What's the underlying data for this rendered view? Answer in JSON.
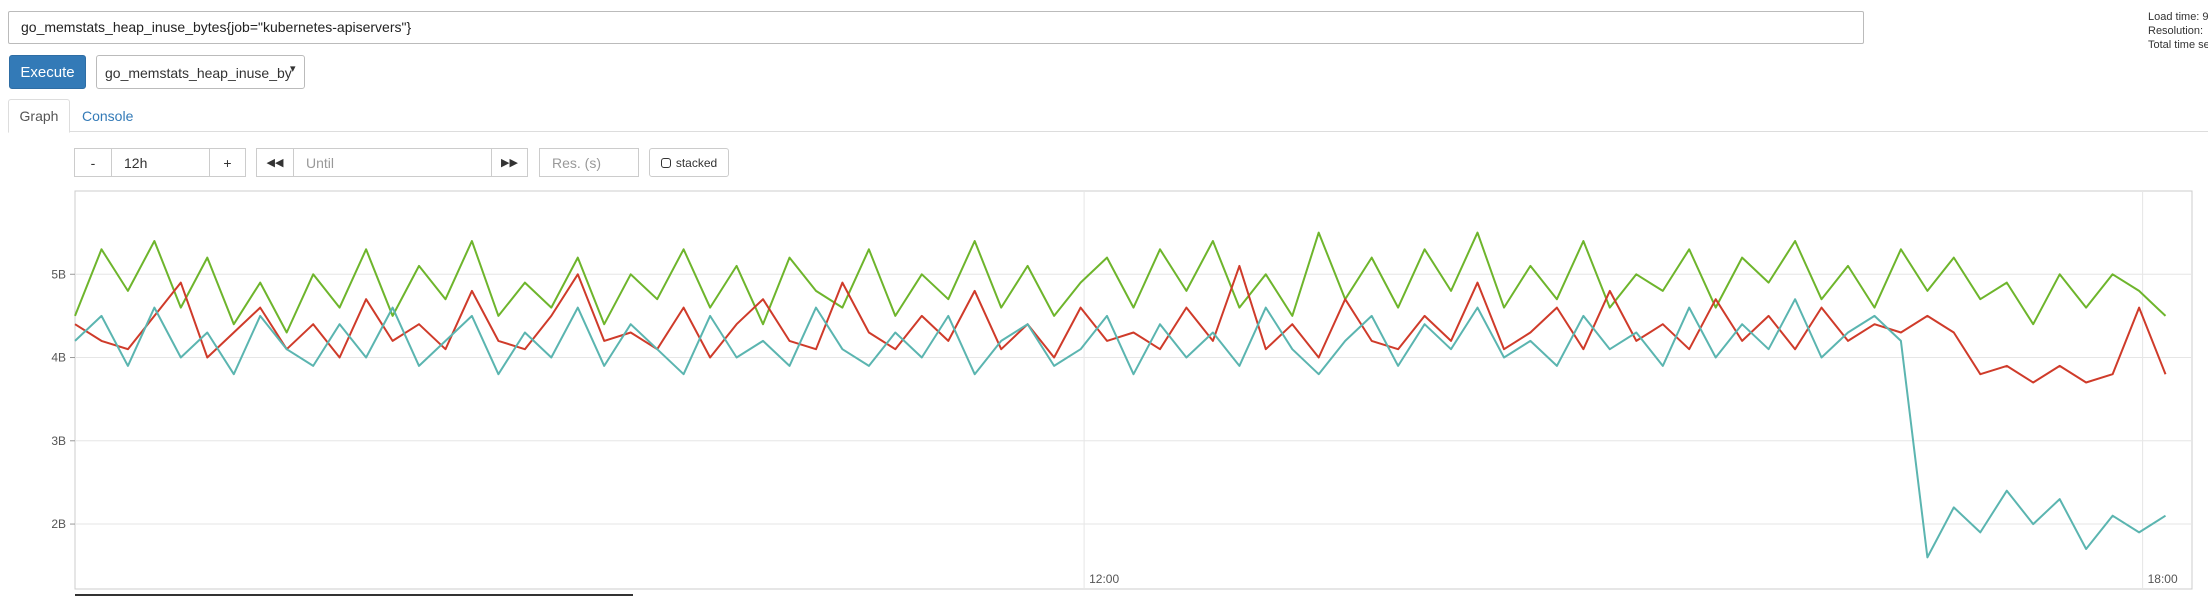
{
  "query_input": "go_memstats_heap_inuse_bytes{job=\"kubernetes-apiservers\"}",
  "execute_button": "Execute",
  "metric_select": "go_memstats_heap_inuse_by",
  "tabs": [
    "Graph",
    "Console"
  ],
  "controls": {
    "minus": "-",
    "range": "12h",
    "plus": "+",
    "until": "Until",
    "resolution": "Res. (s)",
    "stacked": "stacked"
  },
  "stats": [
    "Load time: 9",
    "Resolution:",
    "Total time se"
  ],
  "chart_data": {
    "type": "line",
    "x": [
      6.28,
      6.43,
      6.58,
      6.73,
      6.88,
      7.03,
      7.18,
      7.33,
      7.48,
      7.63,
      7.78,
      7.93,
      8.08,
      8.23,
      8.38,
      8.53,
      8.68,
      8.83,
      8.98,
      9.13,
      9.28,
      9.43,
      9.58,
      9.73,
      9.88,
      10.03,
      10.18,
      10.33,
      10.48,
      10.63,
      10.78,
      10.93,
      11.08,
      11.23,
      11.38,
      11.53,
      11.68,
      11.83,
      11.98,
      12.13,
      12.28,
      12.43,
      12.58,
      12.73,
      12.88,
      13.03,
      13.18,
      13.33,
      13.48,
      13.63,
      13.78,
      13.93,
      14.08,
      14.23,
      14.38,
      14.53,
      14.68,
      14.83,
      14.98,
      15.13,
      15.28,
      15.43,
      15.58,
      15.73,
      15.88,
      16.03,
      16.18,
      16.33,
      16.48,
      16.63,
      16.78,
      16.93,
      17.08,
      17.23,
      17.38,
      17.53,
      17.68,
      17.83,
      17.98,
      18.13
    ],
    "series": [
      {
        "color": "#6eb52c",
        "values": [
          4.5,
          5.3,
          4.8,
          5.4,
          4.6,
          5.2,
          4.4,
          4.9,
          4.3,
          5.0,
          4.6,
          5.3,
          4.5,
          5.1,
          4.7,
          5.4,
          4.5,
          4.9,
          4.6,
          5.2,
          4.4,
          5.0,
          4.7,
          5.3,
          4.6,
          5.1,
          4.4,
          5.2,
          4.8,
          4.6,
          5.3,
          4.5,
          5.0,
          4.7,
          5.4,
          4.6,
          5.1,
          4.5,
          4.9,
          5.2,
          4.6,
          5.3,
          4.8,
          5.4,
          4.6,
          5.0,
          4.5,
          5.5,
          4.7,
          5.2,
          4.6,
          5.3,
          4.8,
          5.5,
          4.6,
          5.1,
          4.7,
          5.4,
          4.6,
          5.0,
          4.8,
          5.3,
          4.6,
          5.2,
          4.9,
          5.4,
          4.7,
          5.1,
          4.6,
          5.3,
          4.8,
          5.2,
          4.7,
          4.9,
          4.4,
          5.0,
          4.6,
          5.0,
          4.8,
          4.5
        ]
      },
      {
        "color": "#cf3b2a",
        "values": [
          4.4,
          4.2,
          4.1,
          4.5,
          4.9,
          4.0,
          4.3,
          4.6,
          4.1,
          4.4,
          4.0,
          4.7,
          4.2,
          4.4,
          4.1,
          4.8,
          4.2,
          4.1,
          4.5,
          5.0,
          4.2,
          4.3,
          4.1,
          4.6,
          4.0,
          4.4,
          4.7,
          4.2,
          4.1,
          4.9,
          4.3,
          4.1,
          4.5,
          4.2,
          4.8,
          4.1,
          4.4,
          4.0,
          4.6,
          4.2,
          4.3,
          4.1,
          4.6,
          4.2,
          5.1,
          4.1,
          4.4,
          4.0,
          4.7,
          4.2,
          4.1,
          4.5,
          4.2,
          4.9,
          4.1,
          4.3,
          4.6,
          4.1,
          4.8,
          4.2,
          4.4,
          4.1,
          4.7,
          4.2,
          4.5,
          4.1,
          4.6,
          4.2,
          4.4,
          4.3,
          4.5,
          4.3,
          3.8,
          3.9,
          3.7,
          3.9,
          3.7,
          3.8,
          4.6,
          3.8
        ]
      },
      {
        "color": "#5bb5b0",
        "values": [
          4.2,
          4.5,
          3.9,
          4.6,
          4.0,
          4.3,
          3.8,
          4.5,
          4.1,
          3.9,
          4.4,
          4.0,
          4.6,
          3.9,
          4.2,
          4.5,
          3.8,
          4.3,
          4.0,
          4.6,
          3.9,
          4.4,
          4.1,
          3.8,
          4.5,
          4.0,
          4.2,
          3.9,
          4.6,
          4.1,
          3.9,
          4.3,
          4.0,
          4.5,
          3.8,
          4.2,
          4.4,
          3.9,
          4.1,
          4.5,
          3.8,
          4.4,
          4.0,
          4.3,
          3.9,
          4.6,
          4.1,
          3.8,
          4.2,
          4.5,
          3.9,
          4.4,
          4.1,
          4.6,
          4.0,
          4.2,
          3.9,
          4.5,
          4.1,
          4.3,
          3.9,
          4.6,
          4.0,
          4.4,
          4.1,
          4.7,
          4.0,
          4.3,
          4.5,
          4.2,
          1.6,
          2.2,
          1.9,
          2.4,
          2.0,
          2.3,
          1.7,
          2.1,
          1.9,
          2.1
        ]
      }
    ],
    "xlim": [
      6.28,
      18.28
    ],
    "xticks": [
      {
        "value": 12,
        "label": "12:00"
      },
      {
        "value": 18,
        "label": "18:00"
      }
    ],
    "ylim": [
      1.22,
      6.0
    ],
    "yticks": [
      {
        "value": 2,
        "label": "2B"
      },
      {
        "value": 3,
        "label": "3B"
      },
      {
        "value": 4,
        "label": "4B"
      },
      {
        "value": 5,
        "label": "5B"
      }
    ],
    "grid": true
  }
}
